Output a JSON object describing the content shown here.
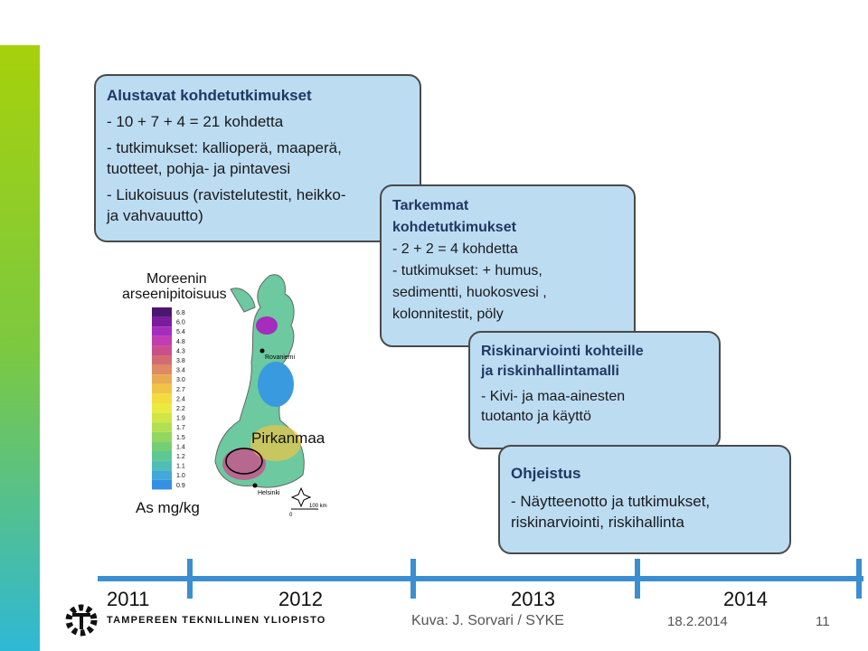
{
  "boxes": [
    {
      "title": "Alustavat kohdetutkimukset",
      "lines": [
        "- 10 + 7 + 4 = 21 kohdetta",
        "-  tutkimukset: kallioperä, maaperä,",
        "tuotteet, pohja- ja pintavesi",
        "- Liukoisuus (ravistelutestit, heikko-",
        "ja vahvauutto)"
      ]
    },
    {
      "title": "Tarkemmat",
      "title2": "kohdetutkimukset",
      "lines": [
        "- 2 + 2 = 4 kohdetta",
        "- tutkimukset:  + humus,",
        "sedimentti, huokosvesi ,",
        "kolonnitestit, pöly"
      ]
    },
    {
      "title": "Riskinarviointi kohteille",
      "title2": "ja  riskinhallintamalli",
      "lines": [
        "- Kivi- ja maa-ainesten",
        "tuotanto ja käyttö"
      ]
    },
    {
      "title": "Ohjeistus",
      "lines": [
        "- Näytteenotto ja tutkimukset,",
        "riskinarviointi, riskihallinta"
      ]
    }
  ],
  "map": {
    "title": [
      "Moreenin",
      "arseenipitoisuus"
    ],
    "unit": "As  mg/kg",
    "legend": [
      {
        "label": "6.8",
        "color": "#4b1670"
      },
      {
        "label": "6.0",
        "color": "#7a1c9c"
      },
      {
        "label": "5.4",
        "color": "#a52cbd"
      },
      {
        "label": "4.8",
        "color": "#c23cb2"
      },
      {
        "label": "4.3",
        "color": "#c9508a"
      },
      {
        "label": "3.8",
        "color": "#d26c72"
      },
      {
        "label": "3.4",
        "color": "#de8a62"
      },
      {
        "label": "3.0",
        "color": "#e8aa52"
      },
      {
        "label": "2.7",
        "color": "#f0c545"
      },
      {
        "label": "2.4",
        "color": "#f2dc3e"
      },
      {
        "label": "2.2",
        "color": "#eaea40"
      },
      {
        "label": "1.9",
        "color": "#d0e646"
      },
      {
        "label": "1.7",
        "color": "#b2df52"
      },
      {
        "label": "1.5",
        "color": "#92d760"
      },
      {
        "label": "1.4",
        "color": "#74cf74"
      },
      {
        "label": "1.2",
        "color": "#5ec894"
      },
      {
        "label": "1.1",
        "color": "#4fbfb6"
      },
      {
        "label": "1.0",
        "color": "#42a8d8"
      },
      {
        "label": "0.9",
        "color": "#3390e2"
      }
    ],
    "places": [
      "Rovaniemi",
      "Pirkanmaa",
      "Helsinki"
    ],
    "scale": [
      "0",
      "100 km"
    ]
  },
  "timeline": [
    "2011",
    "2012",
    "2013",
    "2014"
  ],
  "footer": {
    "university": "TAMPEREEN TEKNILLINEN YLIOPISTO",
    "credit": "Kuva: J. Sorvari / SYKE",
    "date": "18.2.2014",
    "page": "11"
  }
}
